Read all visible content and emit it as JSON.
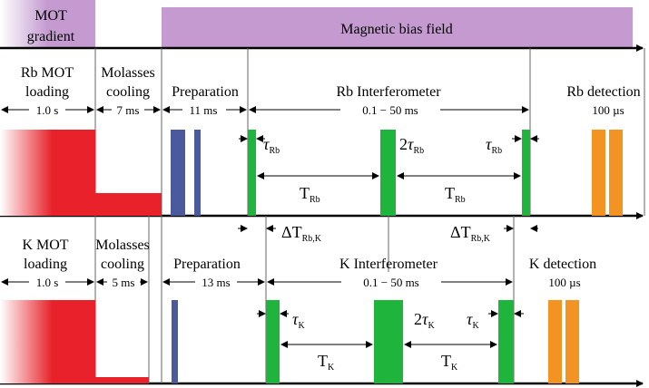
{
  "header": {
    "mot_gradient": [
      "MOT",
      "gradient"
    ],
    "magnetic_bias_field": "Magnetic bias field"
  },
  "rb": {
    "phases": {
      "mot_loading": [
        "Rb MOT",
        "loading"
      ],
      "molasses_cooling": [
        "Molasses",
        "cooling"
      ],
      "preparation": "Preparation",
      "interferometer": "Rb Interferometer",
      "detection": "Rb detection"
    },
    "durations": {
      "mot": "1.0 s",
      "molasses": "7 ms",
      "preparation": "11 ms",
      "interferometer": "0.1 − 50 ms",
      "detection": "100 µs"
    },
    "pulse_labels": {
      "tau_first": "Rb",
      "tau_mid_coef": "2",
      "tau_mid": "Rb",
      "tau_last": "Rb",
      "T_first": "Rb",
      "T_second": "Rb"
    }
  },
  "delta": {
    "left": "Rb,K",
    "right": "Rb,K"
  },
  "k": {
    "phases": {
      "mot_loading": [
        "K MOT",
        "loading"
      ],
      "molasses_cooling": [
        "Molasses",
        "cooling"
      ],
      "preparation": "Preparation",
      "interferometer": "K Interferometer",
      "detection": "K detection"
    },
    "durations": {
      "mot": "1.0 s",
      "molasses": "5 ms",
      "preparation": "13 ms",
      "interferometer": "0.1 − 50 ms",
      "detection": "100 µs"
    },
    "pulse_labels": {
      "tau_first": "K",
      "tau_mid_coef": "2",
      "tau_mid": "K",
      "tau_last": "K",
      "T_first": "K",
      "T_second": "K"
    }
  },
  "symbols": {
    "tau": "τ",
    "T": "T",
    "Delta": "ΔT"
  },
  "colors": {
    "mot_red": "#e8212a",
    "prep_blue": "#4a5a9c",
    "pulse_green": "#1fb43b",
    "detect_orange": "#f39322",
    "field_purple": "#c49ad1"
  }
}
